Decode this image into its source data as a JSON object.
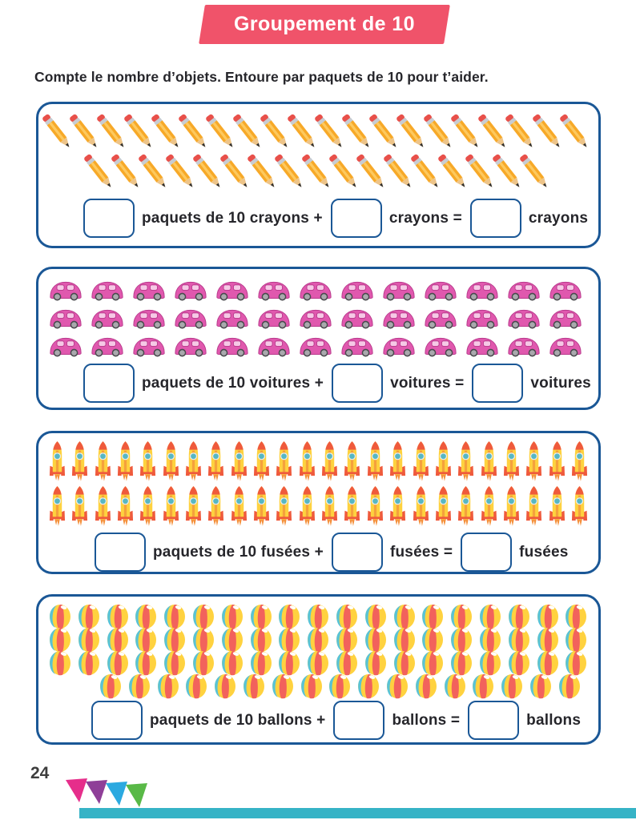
{
  "page": {
    "title": "Groupement de 10",
    "instruction": "Compte le nombre d’objets. Entoure par paquets de 10 pour t’aider.",
    "page_number": "24"
  },
  "colors": {
    "banner": "#f0536a",
    "box_border": "#1a5796",
    "text": "#26262b",
    "footer_bar": "#36b3c6",
    "flags": [
      "#e62e8b",
      "#8f3f98",
      "#2ba9e0",
      "#59b947"
    ]
  },
  "sections": [
    {
      "name": "crayons",
      "icon": "pencil-icon",
      "item_rows": [
        20,
        17
      ],
      "answer": {
        "box1": "",
        "label1": "paquets de 10 crayons +",
        "box2": "",
        "label2": "crayons =",
        "box3": "",
        "label3": "crayons"
      }
    },
    {
      "name": "voitures",
      "icon": "car-icon",
      "item_rows": [
        13,
        13,
        13
      ],
      "answer": {
        "box1": "",
        "label1": "paquets de 10 voitures +",
        "box2": "",
        "label2": "voitures =",
        "box3": "",
        "label3": "voitures"
      }
    },
    {
      "name": "fusees",
      "icon": "rocket-icon",
      "item_rows": [
        24,
        24
      ],
      "answer": {
        "box1": "",
        "label1": "paquets de 10 fusées +",
        "box2": "",
        "label2": "fusées =",
        "box3": "",
        "label3": "fusées"
      }
    },
    {
      "name": "ballons",
      "icon": "ball-icon",
      "item_rows": [
        19,
        19,
        19,
        17
      ],
      "answer": {
        "box1": "",
        "label1": "paquets de 10 ballons +",
        "box2": "",
        "label2": "ballons =",
        "box3": "",
        "label3": "ballons"
      }
    }
  ]
}
